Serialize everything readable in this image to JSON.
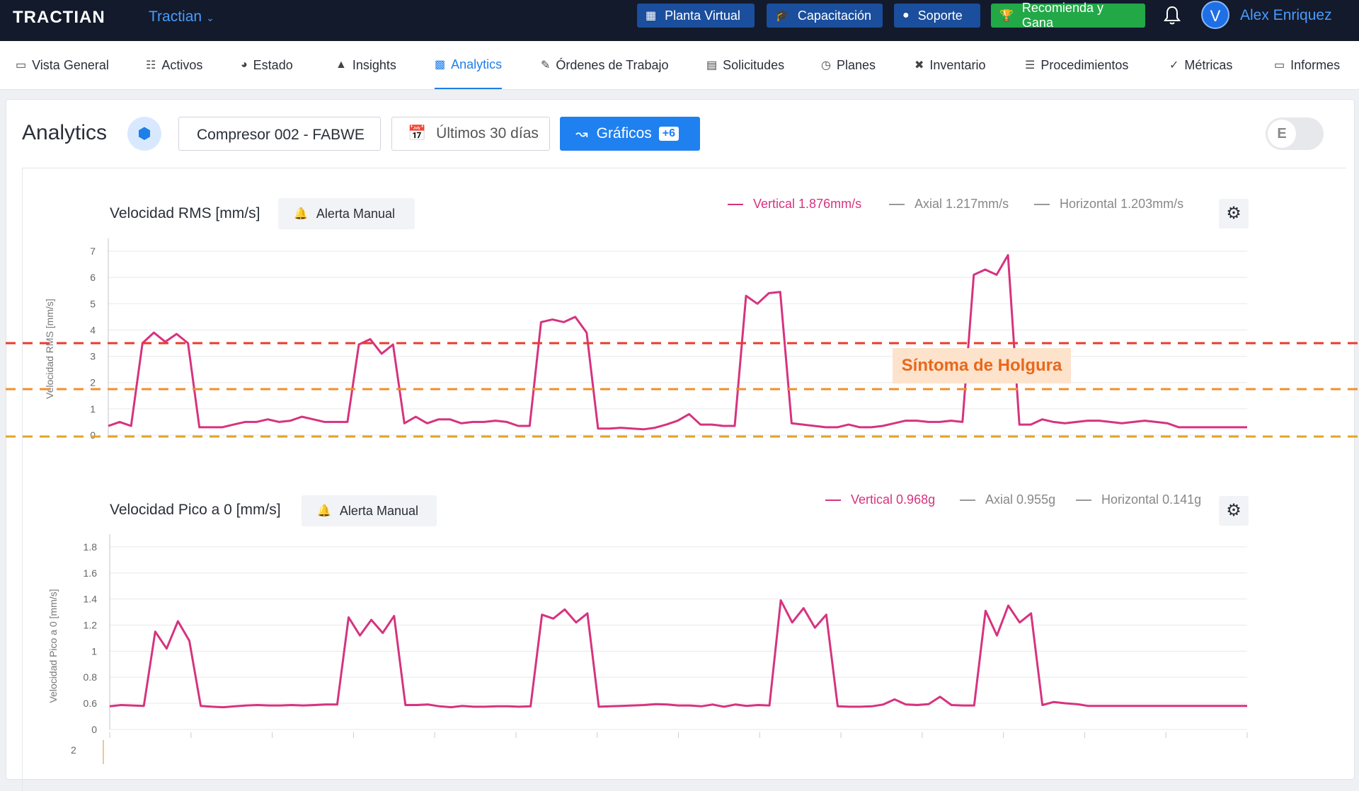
{
  "topbar": {
    "logo": "TRACTIAN",
    "workspace": "Tractian",
    "buttons": {
      "planta": "Planta Virtual",
      "capacitacion": "Capacitación",
      "soporte": "Soporte",
      "recomienda": "Recomienda y Gana"
    },
    "avatar_initial": "V",
    "user_name": "Alex Enriquez"
  },
  "nav": [
    {
      "label": "Vista General",
      "icon": "monitor-icon"
    },
    {
      "label": "Activos",
      "icon": "hierarchy-icon"
    },
    {
      "label": "Estado",
      "icon": "gauge-icon"
    },
    {
      "label": "Insights",
      "icon": "alarm-icon"
    },
    {
      "label": "Analytics",
      "icon": "bar-chart-icon",
      "active": true
    },
    {
      "label": "Órdenes de Trabajo",
      "icon": "edit-icon"
    },
    {
      "label": "Solicitudes",
      "icon": "clipboard-icon"
    },
    {
      "label": "Planes",
      "icon": "clock-icon"
    },
    {
      "label": "Inventario",
      "icon": "tools-icon"
    },
    {
      "label": "Procedimientos",
      "icon": "list-icon"
    },
    {
      "label": "Métricas",
      "icon": "check-circle-icon"
    },
    {
      "label": "Informes",
      "icon": "document-icon"
    }
  ],
  "toolbar": {
    "title": "Analytics",
    "asset": "Compresor 002 - FABWE",
    "date_range": "Últimos 30 días",
    "graficos_label": "Gráficos",
    "graficos_badge": "+6",
    "toggle_letter": "E"
  },
  "colors": {
    "accent": "#1f80f0",
    "vertical": "#d6337f",
    "threshold_red": "#ea3b2e",
    "threshold_orange": "#f0902c",
    "threshold_yellow": "#e0a524",
    "annotation_bg": "#fde3cc",
    "annotation_text": "#e8681c"
  },
  "chart_data": [
    {
      "type": "line",
      "title": "Velocidad RMS [mm/s]",
      "alert_button": "Alerta Manual",
      "ylabel": "Velocidad RMS [mm/s]",
      "ylim": [
        0,
        7
      ],
      "yticks": [
        "0",
        "1",
        "2",
        "3",
        "4",
        "5",
        "6",
        "7"
      ],
      "legend": [
        {
          "name": "Vertical",
          "value": "1.876mm/s"
        },
        {
          "name": "Axial",
          "value": "1.217mm/s"
        },
        {
          "name": "Horizontal",
          "value": "1.203mm/s"
        }
      ],
      "annotation": "Síntoma de Holgura",
      "thresholds": [
        3.5,
        1.75,
        0
      ],
      "x": [
        0,
        1,
        2,
        3,
        4,
        5,
        6,
        7,
        8,
        9,
        10,
        11,
        12,
        13,
        14,
        15,
        16,
        17,
        18,
        19,
        20,
        21,
        22,
        23,
        24,
        25,
        26,
        27,
        28,
        29,
        30,
        31,
        32,
        33,
        34,
        35,
        36,
        37,
        38,
        39,
        40,
        41,
        42,
        43,
        44,
        45,
        46,
        47,
        48,
        49,
        50,
        51,
        52,
        53,
        54,
        55,
        56,
        57,
        58,
        59,
        60,
        61,
        62,
        63,
        64,
        65,
        66,
        67,
        68,
        69,
        70,
        71,
        72,
        73,
        74,
        75,
        76,
        77,
        78,
        79,
        80,
        81,
        82,
        83,
        84,
        85,
        86,
        87,
        88,
        89,
        90,
        91,
        92,
        93,
        94,
        95,
        96,
        97,
        98,
        99,
        100
      ],
      "series": [
        {
          "name": "Vertical",
          "values": [
            0.35,
            0.5,
            0.35,
            3.5,
            3.9,
            3.55,
            3.85,
            3.5,
            0.3,
            0.3,
            0.3,
            0.4,
            0.5,
            0.5,
            0.6,
            0.5,
            0.55,
            0.7,
            0.6,
            0.5,
            0.5,
            0.5,
            3.45,
            3.65,
            3.1,
            3.45,
            0.45,
            0.7,
            0.45,
            0.6,
            0.6,
            0.45,
            0.5,
            0.5,
            0.55,
            0.5,
            0.35,
            0.35,
            4.3,
            4.4,
            4.3,
            4.5,
            3.9,
            0.25,
            0.25,
            0.28,
            0.25,
            0.22,
            0.28,
            0.4,
            0.55,
            0.8,
            0.4,
            0.4,
            0.35,
            0.35,
            5.3,
            5.0,
            5.4,
            5.45,
            0.45,
            0.4,
            0.35,
            0.3,
            0.3,
            0.4,
            0.3,
            0.3,
            0.35,
            0.45,
            0.55,
            0.55,
            0.5,
            0.5,
            0.55,
            0.5,
            6.1,
            6.3,
            6.1,
            6.85,
            0.4,
            0.4,
            0.6,
            0.5,
            0.45,
            0.5,
            0.55,
            0.55,
            0.5,
            0.45,
            0.5,
            0.55,
            0.5,
            0.45,
            0.3,
            0.3,
            0.3,
            0.3,
            0.3,
            0.3,
            0.3
          ]
        }
      ]
    },
    {
      "type": "line",
      "title": "Velocidad Pico a 0 [mm/s]",
      "alert_button": "Alerta Manual",
      "ylabel": "Velocidad Pico a 0 [mm/s]",
      "ylim": [
        0,
        1.8
      ],
      "yticks": [
        "0",
        "0.6",
        "0.8",
        "1",
        "1.2",
        "1.4",
        "1.6",
        "1.8"
      ],
      "legend": [
        {
          "name": "Vertical",
          "value": "0.968g"
        },
        {
          "name": "Axial",
          "value": "0.955g"
        },
        {
          "name": "Horizontal",
          "value": "0.141g"
        }
      ],
      "x": [
        0,
        1,
        2,
        3,
        4,
        5,
        6,
        7,
        8,
        9,
        10,
        11,
        12,
        13,
        14,
        15,
        16,
        17,
        18,
        19,
        20,
        21,
        22,
        23,
        24,
        25,
        26,
        27,
        28,
        29,
        30,
        31,
        32,
        33,
        34,
        35,
        36,
        37,
        38,
        39,
        40,
        41,
        42,
        43,
        44,
        45,
        46,
        47,
        48,
        49,
        50,
        51,
        52,
        53,
        54,
        55,
        56,
        57,
        58,
        59,
        60,
        61,
        62,
        63,
        64,
        65,
        66,
        67,
        68,
        69,
        70,
        71,
        72,
        73,
        74,
        75,
        76,
        77,
        78,
        79,
        80,
        81,
        82,
        83,
        84,
        85,
        86,
        87,
        88,
        89,
        90,
        91,
        92,
        93,
        94,
        95,
        96,
        97,
        98,
        99,
        100
      ],
      "series": [
        {
          "name": "Vertical",
          "values": [
            0.53,
            0.56,
            0.55,
            0.54,
            1.15,
            1.02,
            1.23,
            1.08,
            0.54,
            0.52,
            0.51,
            0.53,
            0.55,
            0.56,
            0.55,
            0.55,
            0.56,
            0.55,
            0.56,
            0.57,
            0.57,
            1.26,
            1.12,
            1.24,
            1.14,
            1.27,
            0.56,
            0.56,
            0.57,
            0.53,
            0.51,
            0.54,
            0.52,
            0.52,
            0.53,
            0.53,
            0.52,
            0.53,
            1.28,
            1.25,
            1.32,
            1.22,
            1.29,
            0.52,
            0.53,
            0.54,
            0.55,
            0.56,
            0.58,
            0.57,
            0.55,
            0.55,
            0.53,
            0.57,
            0.52,
            0.57,
            0.54,
            0.56,
            0.55,
            1.39,
            1.22,
            1.33,
            1.18,
            1.28,
            0.53,
            0.52,
            0.52,
            0.53,
            0.57,
            0.63,
            0.57,
            0.56,
            0.58,
            0.65,
            0.56,
            0.55,
            0.55,
            1.31,
            1.12,
            1.35,
            1.22,
            1.29,
            0.56,
            0.61,
            0.6,
            0.58,
            0.54,
            0.54,
            0.54,
            0.54,
            0.54,
            0.54,
            0.54,
            0.54,
            0.54,
            0.54,
            0.54,
            0.54,
            0.54,
            0.54,
            0.54
          ]
        }
      ]
    }
  ],
  "third_chart_tick": "2"
}
